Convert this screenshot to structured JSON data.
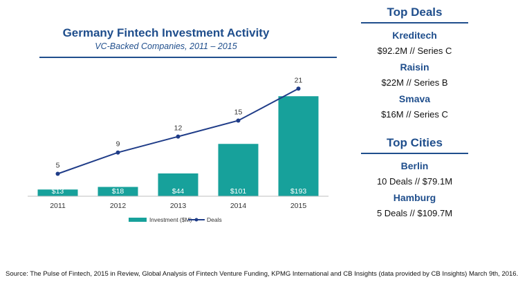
{
  "chart_data": {
    "type": "bar",
    "title": "Germany Fintech Investment Activity",
    "subtitle": "VC-Backed Companies, 2011 – 2015",
    "categories": [
      "2011",
      "2012",
      "2013",
      "2014",
      "2015"
    ],
    "series": [
      {
        "name": "Investment ($M)",
        "type": "bar",
        "values": [
          13,
          18,
          44,
          101,
          193
        ],
        "labels": [
          "$13",
          "$18",
          "$44",
          "$101",
          "$193"
        ],
        "color": "#17a19b"
      },
      {
        "name": "Deals",
        "type": "line",
        "values": [
          5,
          9,
          12,
          15,
          21
        ],
        "color": "#1f3c88"
      }
    ],
    "legend_position": "bottom",
    "grid": false
  },
  "sidebar": {
    "top_deals": {
      "header": "Top Deals",
      "items": [
        {
          "name": "Kreditech",
          "detail": "$92.2M // Series C"
        },
        {
          "name": "Raisin",
          "detail": "$22M // Series B"
        },
        {
          "name": "Smava",
          "detail": "$16M // Series C"
        }
      ]
    },
    "top_cities": {
      "header": "Top Cities",
      "items": [
        {
          "name": "Berlin",
          "detail": "10 Deals // $79.1M"
        },
        {
          "name": "Hamburg",
          "detail": "5 Deals // $109.7M"
        }
      ]
    }
  },
  "source": "Source: The Pulse of Fintech, 2015 in Review, Global Analysis of Fintech Venture Funding, KPMG International and CB Insights (data provided by CB Insights) March 9th, 2016."
}
